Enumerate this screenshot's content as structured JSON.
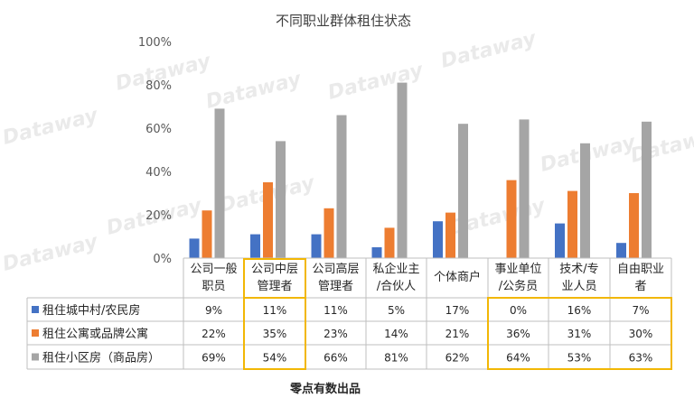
{
  "chart_data": {
    "type": "bar",
    "title": "不同职业群体租住状态",
    "categories": [
      [
        "公司一般",
        "职员"
      ],
      [
        "公司中层",
        "管理者"
      ],
      [
        "公司高层",
        "管理者"
      ],
      [
        "私企业主",
        "/合伙人"
      ],
      [
        "个体商户"
      ],
      [
        "事业单位",
        "/公务员"
      ],
      [
        "技术/专",
        "业人员"
      ],
      [
        "自由职业",
        "者"
      ]
    ],
    "series": [
      {
        "name": "租住城中村/农民房",
        "color": "#4472C4",
        "values": [
          9,
          11,
          11,
          5,
          17,
          0,
          16,
          7
        ],
        "labels": [
          "9%",
          "11%",
          "11%",
          "5%",
          "17%",
          "0%",
          "16%",
          "7%"
        ]
      },
      {
        "name": "租住公寓或品牌公寓",
        "color": "#ED7D31",
        "values": [
          22,
          35,
          23,
          14,
          21,
          36,
          31,
          30
        ],
        "labels": [
          "22%",
          "35%",
          "23%",
          "14%",
          "21%",
          "36%",
          "31%",
          "30%"
        ]
      },
      {
        "name": "租住小区房（商品房）",
        "color": "#A5A5A5",
        "values": [
          69,
          54,
          66,
          81,
          62,
          64,
          53,
          63
        ],
        "labels": [
          "69%",
          "54%",
          "66%",
          "81%",
          "62%",
          "64%",
          "53%",
          "63%"
        ]
      }
    ],
    "yticks": [
      "0%",
      "20%",
      "40%",
      "60%",
      "80%",
      "100%"
    ],
    "ylim": [
      0,
      100
    ],
    "grid": false,
    "legend": "data-table",
    "highlight_color": "#F2B705",
    "highlighted_columns": [
      1,
      5,
      6,
      7
    ]
  },
  "footer": "零点有数出品",
  "watermark": "Dataway"
}
